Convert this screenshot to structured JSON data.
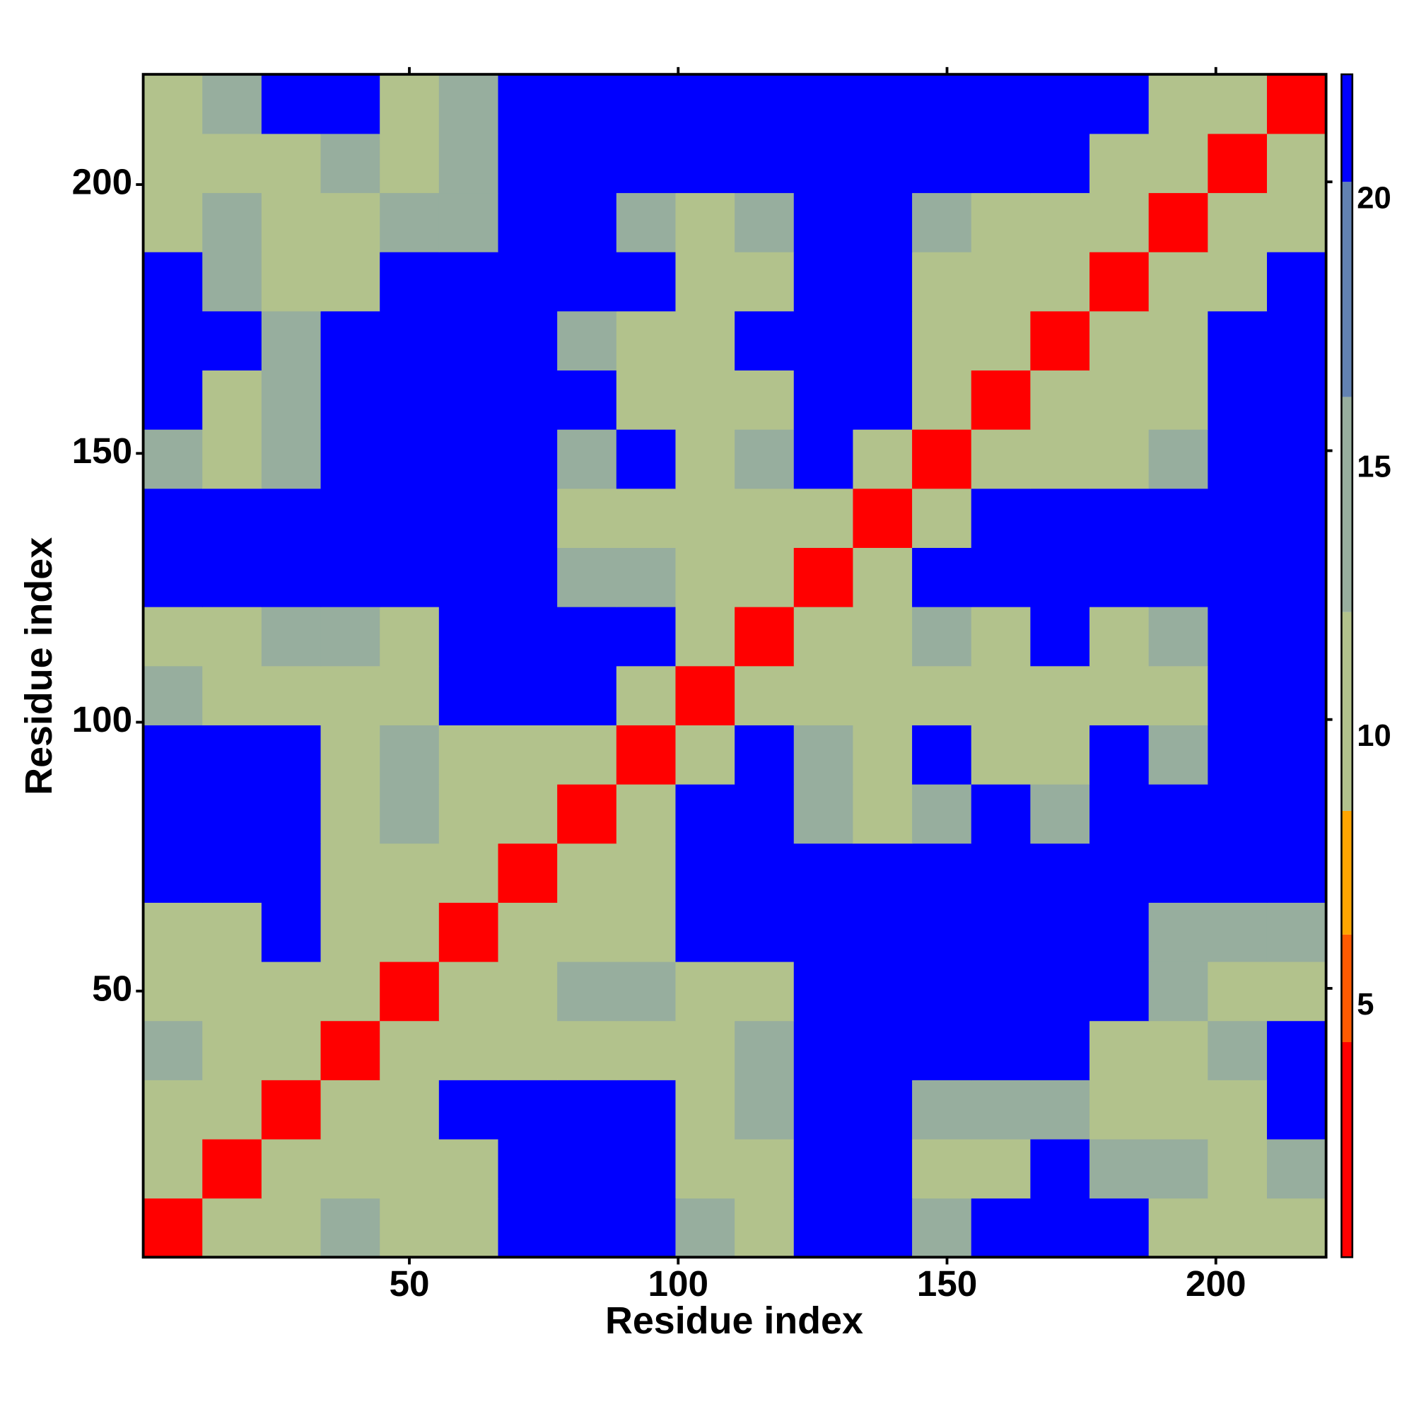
{
  "chart_data": {
    "type": "heatmap",
    "x_label": "Residue index",
    "y_label": "Residue index",
    "x": [
      6,
      17,
      28,
      39,
      50,
      61,
      72,
      83,
      94,
      105,
      116,
      127,
      138,
      149,
      160,
      171,
      182,
      193,
      204,
      215
    ],
    "y": [
      6,
      17,
      28,
      39,
      50,
      61,
      72,
      83,
      94,
      105,
      116,
      127,
      138,
      149,
      160,
      171,
      182,
      193,
      204,
      215
    ],
    "z": [
      [
        3,
        9,
        12,
        13,
        10,
        11,
        22,
        22,
        22,
        13,
        12,
        22,
        22,
        13,
        22,
        22,
        22,
        12,
        12,
        12
      ],
      [
        9,
        3,
        9,
        12,
        11,
        12,
        22,
        22,
        22,
        12,
        11,
        22,
        22,
        11,
        12,
        22,
        13,
        13,
        11,
        14
      ],
      [
        12,
        9,
        3,
        9,
        11,
        22,
        22,
        22,
        22,
        12,
        13,
        22,
        22,
        13,
        14,
        14,
        12,
        10,
        11,
        22
      ],
      [
        13,
        12,
        9,
        3,
        9,
        10,
        12,
        12,
        12,
        11,
        14,
        22,
        22,
        22,
        22,
        22,
        11,
        12,
        13,
        22
      ],
      [
        10,
        11,
        11,
        9,
        3,
        9,
        11,
        13,
        14,
        12,
        12,
        22,
        22,
        22,
        22,
        22,
        22,
        14,
        11,
        12
      ],
      [
        11,
        12,
        22,
        10,
        9,
        3,
        9,
        11,
        11,
        22,
        22,
        22,
        22,
        22,
        22,
        22,
        22,
        15,
        13,
        14
      ],
      [
        22,
        22,
        22,
        12,
        11,
        9,
        3,
        9,
        11,
        22,
        22,
        22,
        22,
        22,
        22,
        22,
        22,
        22,
        22,
        22
      ],
      [
        22,
        22,
        22,
        12,
        13,
        11,
        9,
        3,
        9,
        22,
        22,
        14,
        11,
        13,
        22,
        13,
        22,
        22,
        22,
        22
      ],
      [
        22,
        22,
        22,
        12,
        14,
        11,
        11,
        9,
        3,
        9,
        22,
        13,
        12,
        22,
        12,
        11,
        22,
        13,
        22,
        22
      ],
      [
        13,
        12,
        12,
        11,
        12,
        22,
        22,
        22,
        9,
        3,
        9,
        11,
        12,
        12,
        11,
        10,
        12,
        12,
        22,
        22
      ],
      [
        12,
        11,
        13,
        14,
        12,
        22,
        22,
        22,
        22,
        9,
        3,
        9,
        12,
        13,
        12,
        22,
        12,
        13,
        22,
        22
      ],
      [
        22,
        22,
        22,
        22,
        22,
        22,
        22,
        14,
        13,
        11,
        9,
        3,
        9,
        22,
        22,
        22,
        22,
        22,
        22,
        22
      ],
      [
        22,
        22,
        22,
        22,
        22,
        22,
        22,
        11,
        12,
        12,
        12,
        9,
        3,
        9,
        22,
        22,
        22,
        22,
        22,
        22
      ],
      [
        13,
        11,
        13,
        22,
        22,
        22,
        22,
        13,
        22,
        12,
        13,
        22,
        9,
        3,
        9,
        12,
        12,
        14,
        22,
        22
      ],
      [
        22,
        12,
        14,
        22,
        22,
        22,
        22,
        22,
        12,
        11,
        12,
        22,
        22,
        9,
        3,
        9,
        11,
        12,
        22,
        22
      ],
      [
        22,
        22,
        14,
        22,
        22,
        22,
        22,
        13,
        11,
        10,
        22,
        22,
        22,
        12,
        9,
        3,
        9,
        11,
        22,
        22
      ],
      [
        22,
        13,
        12,
        11,
        22,
        22,
        22,
        22,
        22,
        12,
        12,
        22,
        22,
        12,
        11,
        9,
        3,
        9,
        12,
        22
      ],
      [
        12,
        13,
        10,
        12,
        14,
        15,
        22,
        22,
        13,
        12,
        13,
        22,
        22,
        14,
        12,
        11,
        9,
        3,
        9,
        11
      ],
      [
        12,
        11,
        11,
        13,
        11,
        13,
        22,
        22,
        22,
        22,
        22,
        22,
        22,
        22,
        22,
        22,
        12,
        9,
        3,
        9
      ],
      [
        12,
        14,
        22,
        22,
        12,
        14,
        22,
        22,
        22,
        22,
        22,
        22,
        22,
        22,
        22,
        22,
        22,
        11,
        9,
        3
      ]
    ],
    "xlim": [
      0.5,
      220.5
    ],
    "ylim": [
      0.5,
      220.5
    ],
    "xticks": [
      50,
      100,
      150,
      200
    ],
    "yticks": [
      50,
      100,
      150,
      200
    ],
    "zlim": [
      0,
      22
    ],
    "zticks": [
      5,
      10,
      15,
      20
    ],
    "colorscale": [
      [
        4,
        "#ff0000"
      ],
      [
        6,
        "#ff5a00"
      ],
      [
        8.3,
        "#ffa500"
      ],
      [
        12,
        "#b2c28c"
      ],
      [
        16,
        "#97ae9e"
      ],
      [
        20,
        "#6282b2"
      ],
      [
        22,
        "#0000ff"
      ]
    ]
  }
}
